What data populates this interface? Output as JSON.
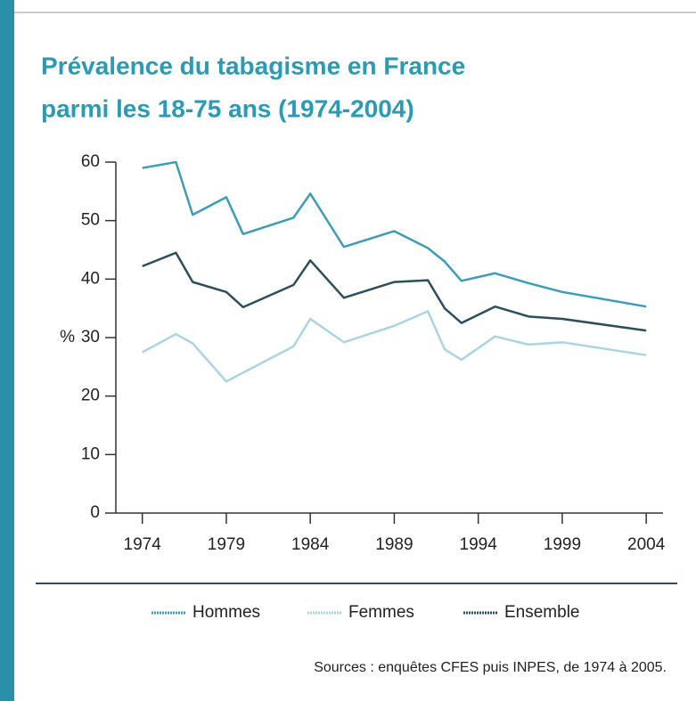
{
  "chart_data": {
    "type": "line",
    "title": "Prévalence du tabagisme en France",
    "subtitle": "parmi les 18-75 ans (1974-2004)",
    "ylabel": "%",
    "source": "Sources : enquêtes CFES puis INPES, de 1974 à 2005.",
    "x": [
      1974,
      1976,
      1977,
      1979,
      1980,
      1983,
      1984,
      1986,
      1989,
      1991,
      1992,
      1993,
      1995,
      1997,
      1999,
      2004
    ],
    "series": [
      {
        "name": "Hommes",
        "color": "#3a9dbb",
        "values": [
          59,
          60,
          51,
          54,
          47.7,
          50.5,
          54.6,
          45.5,
          48.2,
          45.3,
          43,
          39.7,
          41,
          39.3,
          37.8,
          35.3
        ]
      },
      {
        "name": "Femmes",
        "color": "#a9d5e6",
        "values": [
          27.5,
          30.6,
          29,
          22.5,
          24,
          28.5,
          33.2,
          29.2,
          32,
          34.5,
          28,
          26.2,
          30.2,
          28.8,
          29.2,
          27
        ]
      },
      {
        "name": "Ensemble",
        "color": "#2b4f5e",
        "values": [
          42.2,
          44.5,
          39.5,
          37.8,
          35.2,
          39,
          43.2,
          36.8,
          39.5,
          39.8,
          35,
          32.5,
          35.3,
          33.6,
          33.2,
          31.2
        ]
      }
    ],
    "xlim": [
      1972,
      2005
    ],
    "xticks": [
      1974,
      1979,
      1984,
      1989,
      1994,
      1999,
      2004
    ],
    "ylim": [
      0,
      60
    ],
    "yticks": [
      0,
      10,
      20,
      30,
      40,
      50,
      60
    ],
    "grid": false
  }
}
